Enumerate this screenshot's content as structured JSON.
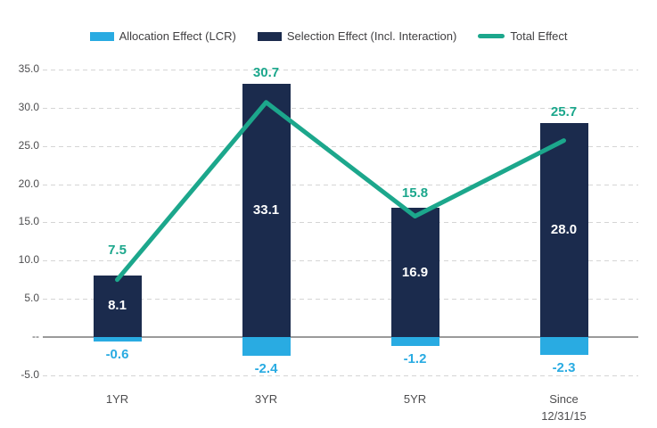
{
  "chart_data": {
    "type": "bar+line",
    "title": "",
    "xlabel": "",
    "ylabel": "",
    "categories": [
      {
        "label": "1YR",
        "sublabel": ""
      },
      {
        "label": "3YR",
        "sublabel": ""
      },
      {
        "label": "5YR",
        "sublabel": ""
      },
      {
        "label": "Since",
        "sublabel": "12/31/15"
      }
    ],
    "series": [
      {
        "name": "Allocation Effect (LCR)",
        "type": "bar",
        "color": "#29ABE2",
        "values": [
          -0.6,
          -2.4,
          -1.2,
          -2.3
        ]
      },
      {
        "name": "Selection Effect (Incl. Interaction)",
        "type": "bar",
        "color": "#1B2B4D",
        "values": [
          8.1,
          33.1,
          16.9,
          28.0
        ]
      },
      {
        "name": "Total Effect",
        "type": "line",
        "color": "#1CA78C",
        "values": [
          7.5,
          30.7,
          15.8,
          25.7
        ]
      }
    ],
    "yticks": [
      {
        "value": 35,
        "label": "35.0"
      },
      {
        "value": 30,
        "label": "30.0"
      },
      {
        "value": 25,
        "label": "25.0"
      },
      {
        "value": 20,
        "label": "20.0"
      },
      {
        "value": 15,
        "label": "15.0"
      },
      {
        "value": 10,
        "label": "10.0"
      },
      {
        "value": 5,
        "label": "5.0"
      },
      {
        "value": 0,
        "label": "--"
      },
      {
        "value": -5,
        "label": "-5.0"
      }
    ],
    "ylim": [
      -5,
      35
    ],
    "grid": "horizontal-dashed",
    "legend_position": "top",
    "colors": {
      "allocation": "#29ABE2",
      "selection": "#1B2B4D",
      "total": "#1CA78C",
      "gridline": "#D5D5D5",
      "zero_line": "#9A9A9A",
      "axis_text": "#4D4D4F",
      "legend_text": "#414042",
      "bar_value_text": "#FFFFFF",
      "background": "#FFFFFF"
    }
  }
}
